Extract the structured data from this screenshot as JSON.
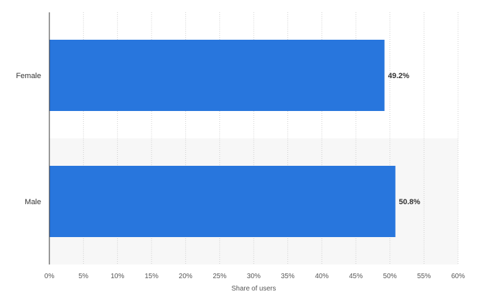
{
  "chart_data": {
    "type": "bar",
    "orientation": "horizontal",
    "categories": [
      "Female",
      "Male"
    ],
    "values": [
      49.2,
      50.8
    ],
    "value_labels": [
      "49.2%",
      "50.8%"
    ],
    "title": "",
    "xlabel": "Share of users",
    "ylabel": "",
    "xlim": [
      0,
      60
    ],
    "x_ticks": [
      0,
      5,
      10,
      15,
      20,
      25,
      30,
      35,
      40,
      45,
      50,
      55,
      60
    ],
    "x_tick_labels": [
      "0%",
      "5%",
      "10%",
      "15%",
      "20%",
      "25%",
      "30%",
      "35%",
      "40%",
      "45%",
      "50%",
      "55%",
      "60%"
    ],
    "grid": "vertical dotted",
    "legend": "none",
    "colors": {
      "bar": "#2876dd",
      "alt_band": "#f7f7f7",
      "grid": "#cccccc",
      "axis": "#333333"
    }
  }
}
